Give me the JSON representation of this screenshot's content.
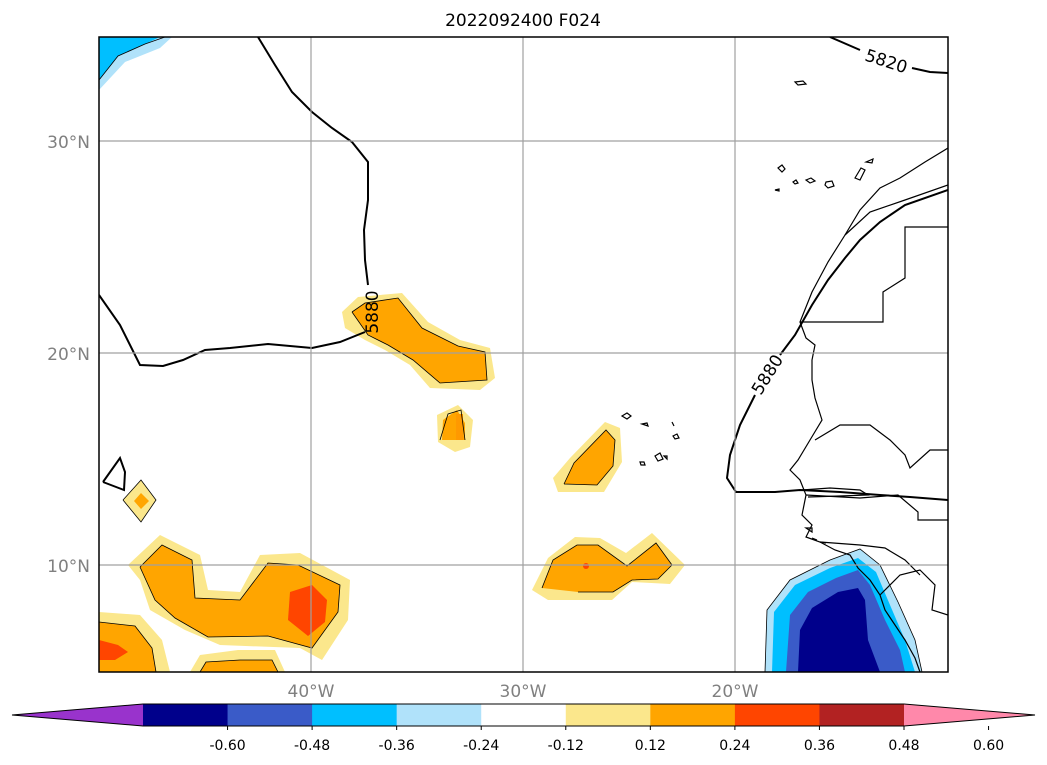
{
  "title": "2022092400 F024",
  "grid": {
    "lat_labels": [
      "30°N",
      "20°N",
      "10°N"
    ],
    "lon_labels": [
      "40°W",
      "30°W",
      "20°W"
    ]
  },
  "contour_labels": [
    "5820",
    "5880",
    "5880"
  ],
  "colorbar": {
    "ticks": [
      "-0.60",
      "-0.48",
      "-0.36",
      "-0.24",
      "-0.12",
      "0.12",
      "0.24",
      "0.36",
      "0.48",
      "0.60"
    ],
    "colors": [
      "#9933cc",
      "#00008b",
      "#3a5bc8",
      "#00bfff",
      "#b0e2fa",
      "#ffffff",
      "#fbe78c",
      "#ffa500",
      "#ff4500",
      "#b22222",
      "#ff88aa"
    ]
  },
  "colors": {
    "yellow": "#fbe78c",
    "orange": "#ffa500",
    "red": "#ff4500",
    "navy": "#00008b",
    "royal": "#3a5bc8",
    "sky": "#00bfff",
    "lightblue": "#b0e2fa"
  }
}
